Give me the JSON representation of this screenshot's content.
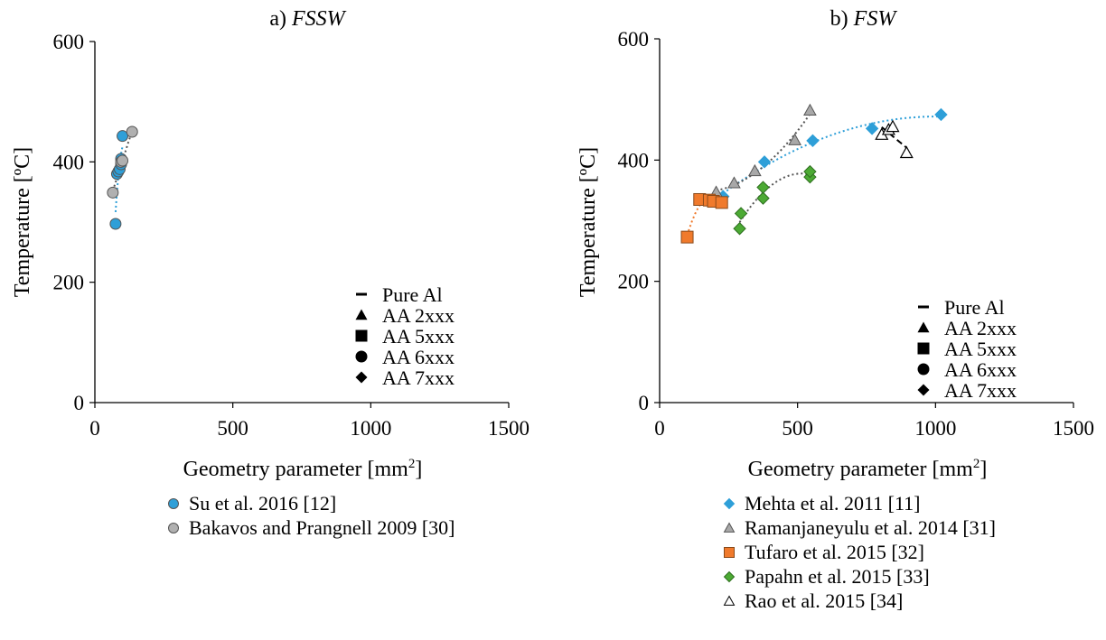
{
  "chart_data": [
    {
      "type": "scatter",
      "panel_prefix": "a) ",
      "panel_name": "FSSW",
      "xlabel": "Geometry parameter [mm",
      "xlabel_sup": "2",
      "xlabel_close": "]",
      "ylabel": "Temperature [ºC]",
      "xlim": [
        0,
        1500
      ],
      "ylim": [
        0,
        600
      ],
      "xticks": [
        "0",
        "500",
        "1000",
        "1500"
      ],
      "yticks": [
        "0",
        "200",
        "400",
        "600"
      ],
      "xtick_values": [
        0,
        500,
        1000,
        1500
      ],
      "ytick_values": [
        0,
        200,
        400,
        600
      ],
      "grid": false,
      "alloy_legend": [
        {
          "marker": "dash",
          "label": "Pure Al"
        },
        {
          "marker": "triangle",
          "label": "AA 2xxx"
        },
        {
          "marker": "square",
          "label": "AA 5xxx"
        },
        {
          "marker": "circle",
          "label": "AA 6xxx"
        },
        {
          "marker": "diamond",
          "label": "AA 7xxx"
        }
      ],
      "series": [
        {
          "name": "Su et al. 2016 [12]",
          "marker": "circle",
          "fill": "#2e9fd8",
          "stroke": "#555555",
          "trend": "#2e9fd8",
          "points": [
            [
              75,
              297
            ],
            [
              80,
              380
            ],
            [
              85,
              384
            ],
            [
              90,
              388
            ],
            [
              95,
              396
            ],
            [
              95,
              405
            ],
            [
              100,
              443
            ]
          ]
        },
        {
          "name": "Bakavos and Prangnell 2009 [30]",
          "marker": "circle",
          "fill": "#b0b0b0",
          "stroke": "#555555",
          "trend": "#555555",
          "points": [
            [
              65,
              349
            ],
            [
              95,
              400
            ],
            [
              100,
              402
            ],
            [
              135,
              450
            ]
          ]
        }
      ]
    },
    {
      "type": "scatter",
      "panel_prefix": "b) ",
      "panel_name": "FSW",
      "xlabel": "Geometry parameter [mm",
      "xlabel_sup": "2",
      "xlabel_close": "]",
      "ylabel": "Temperature [ºC]",
      "xlim": [
        0,
        1500
      ],
      "ylim": [
        0,
        600
      ],
      "xticks": [
        "0",
        "500",
        "1000",
        "1500"
      ],
      "yticks": [
        "0",
        "200",
        "400",
        "600"
      ],
      "xtick_values": [
        0,
        500,
        1000,
        1500
      ],
      "ytick_values": [
        0,
        200,
        400,
        600
      ],
      "grid": false,
      "alloy_legend": [
        {
          "marker": "dash",
          "label": "Pure Al"
        },
        {
          "marker": "triangle",
          "label": "AA 2xxx"
        },
        {
          "marker": "square",
          "label": "AA 5xxx"
        },
        {
          "marker": "circle",
          "label": "AA 6xxx"
        },
        {
          "marker": "diamond",
          "label": "AA 7xxx"
        }
      ],
      "series": [
        {
          "name": "Mehta et al. 2011 [11]",
          "marker": "diamond",
          "fill": "#2e9fd8",
          "stroke": "#2e9fd8",
          "trend": "#2e9fd8",
          "points": [
            [
              230,
              340
            ],
            [
              380,
              397
            ],
            [
              555,
              432
            ],
            [
              770,
              452
            ],
            [
              1020,
              475
            ]
          ]
        },
        {
          "name": "Ramanjaneyulu et al. 2014 [31]",
          "marker": "triangle",
          "fill": "#a8a8a8",
          "stroke": "#555555",
          "trend": "#555555",
          "points": [
            [
              205,
              347
            ],
            [
              270,
              362
            ],
            [
              345,
              382
            ],
            [
              490,
              433
            ],
            [
              545,
              482
            ]
          ]
        },
        {
          "name": "Tufaro et al. 2015 [32]",
          "marker": "square",
          "fill": "#f07a2c",
          "stroke": "#8a4a1a",
          "trend": "#f07a2c",
          "points": [
            [
              100,
              273
            ],
            [
              145,
              335
            ],
            [
              180,
              334
            ],
            [
              195,
              332
            ],
            [
              225,
              330
            ]
          ]
        },
        {
          "name": "Papahn et al. 2015 [33]",
          "marker": "diamond",
          "fill": "#4caa34",
          "stroke": "#2d6e1e",
          "trend": "#555555",
          "points": [
            [
              290,
              287
            ],
            [
              295,
              312
            ],
            [
              375,
              337
            ],
            [
              375,
              355
            ],
            [
              545,
              372
            ],
            [
              545,
              381
            ]
          ]
        },
        {
          "name": "Rao et al. 2015 [34]",
          "marker": "triangle-open",
          "fill": "#ffffff",
          "stroke": "#000000",
          "trend": "#000000",
          "points": [
            [
              805,
              442
            ],
            [
              830,
              450
            ],
            [
              845,
              455
            ],
            [
              895,
              412
            ]
          ]
        }
      ]
    }
  ]
}
